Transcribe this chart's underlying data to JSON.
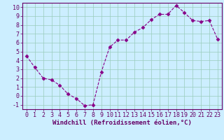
{
  "x": [
    0,
    1,
    2,
    3,
    4,
    5,
    6,
    7,
    8,
    9,
    10,
    11,
    12,
    13,
    14,
    15,
    16,
    17,
    18,
    19,
    20,
    21,
    22,
    23
  ],
  "y": [
    4.5,
    3.2,
    2.0,
    1.8,
    1.2,
    0.2,
    -0.3,
    -1.1,
    -1.0,
    2.7,
    5.5,
    6.3,
    6.3,
    7.2,
    7.7,
    8.6,
    9.2,
    9.2,
    10.2,
    9.4,
    8.5,
    8.4,
    8.5,
    6.4
  ],
  "line_color": "#880088",
  "marker": "D",
  "marker_size": 2.5,
  "bg_color": "#cceeff",
  "grid_color": "#99ccbb",
  "xlim": [
    -0.5,
    23.5
  ],
  "ylim": [
    -1.5,
    10.5
  ],
  "xlabel": "Windchill (Refroidissement éolien,°C)",
  "yticks": [
    -1,
    0,
    1,
    2,
    3,
    4,
    5,
    6,
    7,
    8,
    9,
    10
  ],
  "xticks": [
    0,
    1,
    2,
    3,
    4,
    5,
    6,
    7,
    8,
    9,
    10,
    11,
    12,
    13,
    14,
    15,
    16,
    17,
    18,
    19,
    20,
    21,
    22,
    23
  ],
  "axis_color": "#660066",
  "font_size_xlabel": 6.5,
  "font_size_ticks": 6.0,
  "spine_color": "#660066"
}
